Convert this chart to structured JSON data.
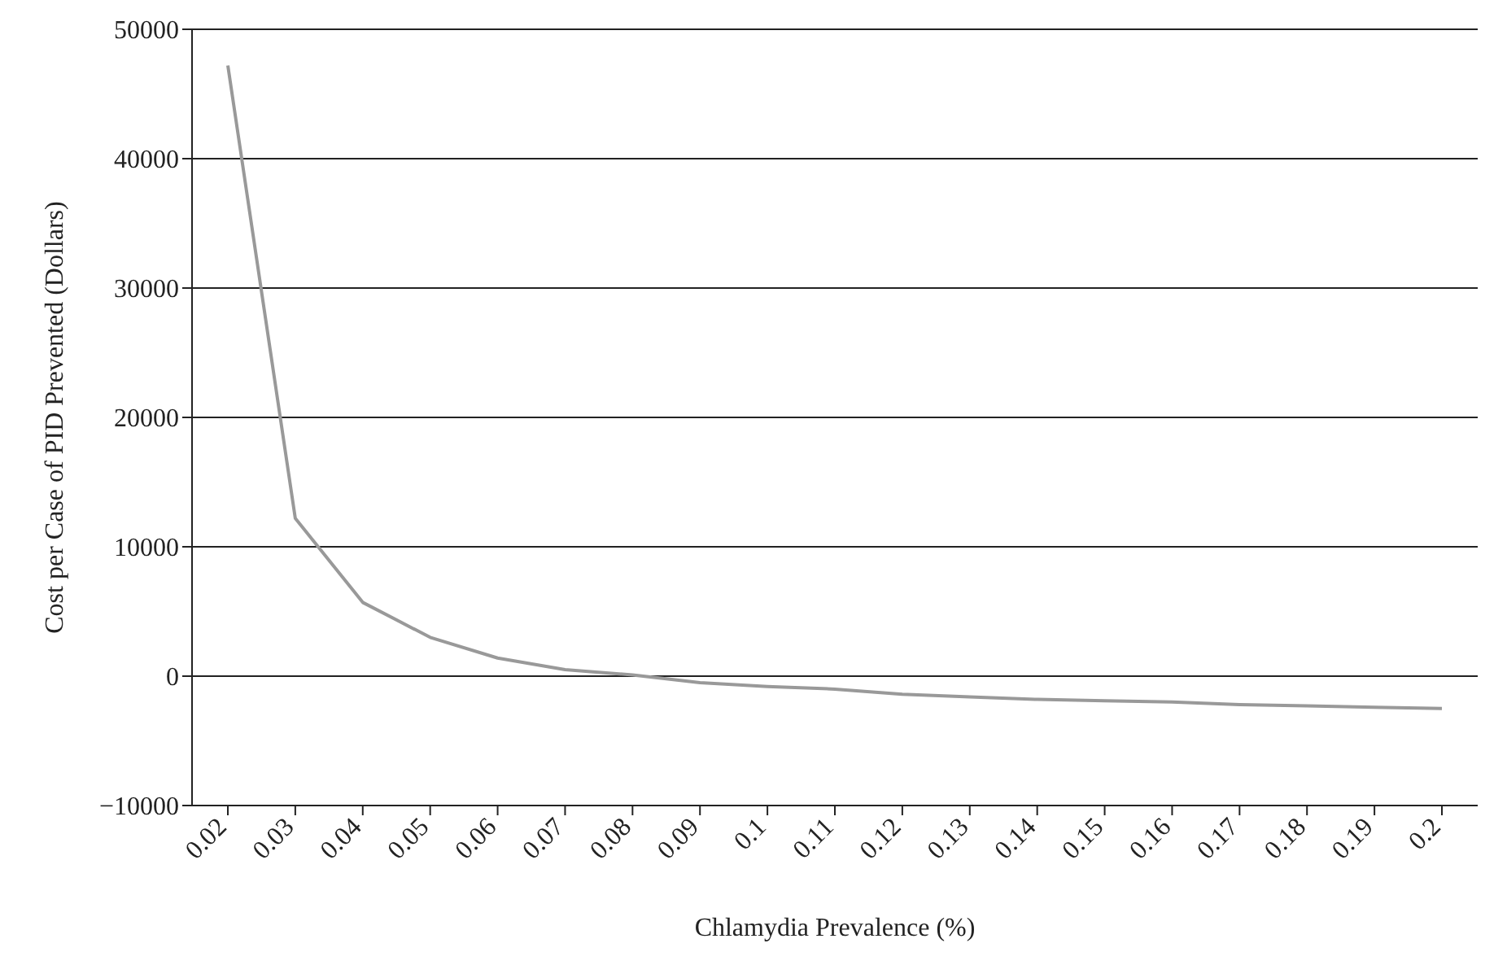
{
  "chart_data": {
    "type": "line",
    "xlabel": "Chlamydia Prevalence (%)",
    "ylabel": "Cost per Case of PID Prevented (Dollars)",
    "categories": [
      "0.02",
      "0.03",
      "0.04",
      "0.05",
      "0.06",
      "0.07",
      "0.08",
      "0.09",
      "0.1",
      "0.11",
      "0.12",
      "0.13",
      "0.14",
      "0.15",
      "0.16",
      "0.17",
      "0.18",
      "0.19",
      "0.2"
    ],
    "series": [
      {
        "color": "#999999",
        "values": [
          47200,
          12200,
          5700,
          3000,
          1400,
          500,
          100,
          -500,
          -800,
          -1000,
          -1400,
          -1600,
          -1800,
          -1900,
          -2000,
          -2200,
          -2300,
          -2400,
          -2500
        ]
      }
    ],
    "ylim": [
      -10000,
      50000
    ],
    "yticks": [
      -10000,
      0,
      10000,
      20000,
      30000,
      40000,
      50000
    ],
    "grid": "y",
    "legend": false,
    "marker": "none",
    "line_style": "solid"
  }
}
